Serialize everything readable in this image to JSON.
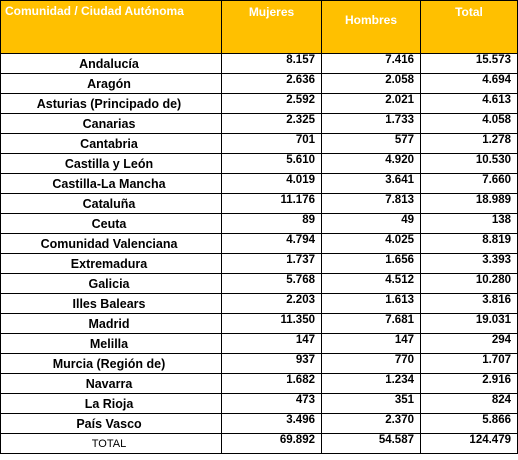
{
  "headers": {
    "region": "Comunidad / Ciudad Autónoma",
    "mujeres": "Mujeres",
    "hombres": "Hombres",
    "total": "Total"
  },
  "rows": [
    {
      "name": "Andalucía",
      "mujeres": "8.157",
      "hombres": "7.416",
      "total": "15.573"
    },
    {
      "name": "Aragón",
      "mujeres": "2.636",
      "hombres": "2.058",
      "total": "4.694"
    },
    {
      "name": "Asturias (Principado de)",
      "mujeres": "2.592",
      "hombres": "2.021",
      "total": "4.613"
    },
    {
      "name": "Canarias",
      "mujeres": "2.325",
      "hombres": "1.733",
      "total": "4.058"
    },
    {
      "name": "Cantabria",
      "mujeres": "701",
      "hombres": "577",
      "total": "1.278"
    },
    {
      "name": "Castilla y León",
      "mujeres": "5.610",
      "hombres": "4.920",
      "total": "10.530"
    },
    {
      "name": "Castilla-La Mancha",
      "mujeres": "4.019",
      "hombres": "3.641",
      "total": "7.660"
    },
    {
      "name": "Cataluña",
      "mujeres": "11.176",
      "hombres": "7.813",
      "total": "18.989"
    },
    {
      "name": "Ceuta",
      "mujeres": "89",
      "hombres": "49",
      "total": "138"
    },
    {
      "name": "Comunidad Valenciana",
      "mujeres": "4.794",
      "hombres": "4.025",
      "total": "8.819"
    },
    {
      "name": "Extremadura",
      "mujeres": "1.737",
      "hombres": "1.656",
      "total": "3.393"
    },
    {
      "name": "Galicia",
      "mujeres": "5.768",
      "hombres": "4.512",
      "total": "10.280"
    },
    {
      "name": "Illes Balears",
      "mujeres": "2.203",
      "hombres": "1.613",
      "total": "3.816"
    },
    {
      "name": "Madrid",
      "mujeres": "11.350",
      "hombres": "7.681",
      "total": "19.031"
    },
    {
      "name": "Melilla",
      "mujeres": "147",
      "hombres": "147",
      "total": "294"
    },
    {
      "name": "Murcia (Región de)",
      "mujeres": "937",
      "hombres": "770",
      "total": "1.707"
    },
    {
      "name": "Navarra",
      "mujeres": "1.682",
      "hombres": "1.234",
      "total": "2.916"
    },
    {
      "name": "La Rioja",
      "mujeres": "473",
      "hombres": "351",
      "total": "824"
    },
    {
      "name": "País Vasco",
      "mujeres": "3.496",
      "hombres": "2.370",
      "total": "5.866"
    }
  ],
  "total_row": {
    "name": "TOTAL",
    "mujeres": "69.892",
    "hombres": "54.587",
    "total": "124.479"
  },
  "colors": {
    "header_bg": "#ffc000",
    "header_text": "#ffffff",
    "border": "#000000"
  }
}
